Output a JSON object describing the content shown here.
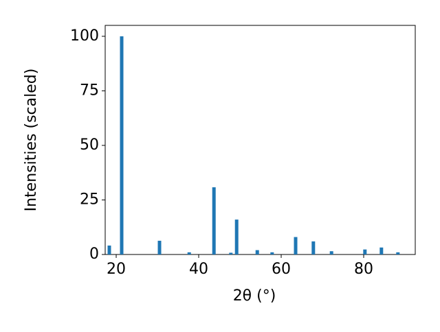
{
  "chart_data": {
    "type": "bar",
    "xlabel": "2θ (°)",
    "ylabel": "Intensities (scaled)",
    "x": [
      18.33,
      21.33,
      30.5,
      37.7,
      43.7,
      47.8,
      49.2,
      54.2,
      57.8,
      63.5,
      67.8,
      72.2,
      80.3,
      84.3,
      88.3
    ],
    "values": [
      4.1,
      100,
      6.3,
      1,
      30.8,
      0.8,
      16,
      2,
      1,
      8,
      6,
      1.5,
      2.3,
      3.2,
      1
    ],
    "color": "#1f77b4",
    "xlim": [
      17.33,
      92.5
    ],
    "ylim": [
      0,
      105
    ],
    "xticks": [
      20,
      40,
      60,
      80
    ],
    "yticks": [
      0,
      25,
      50,
      75,
      100
    ]
  }
}
